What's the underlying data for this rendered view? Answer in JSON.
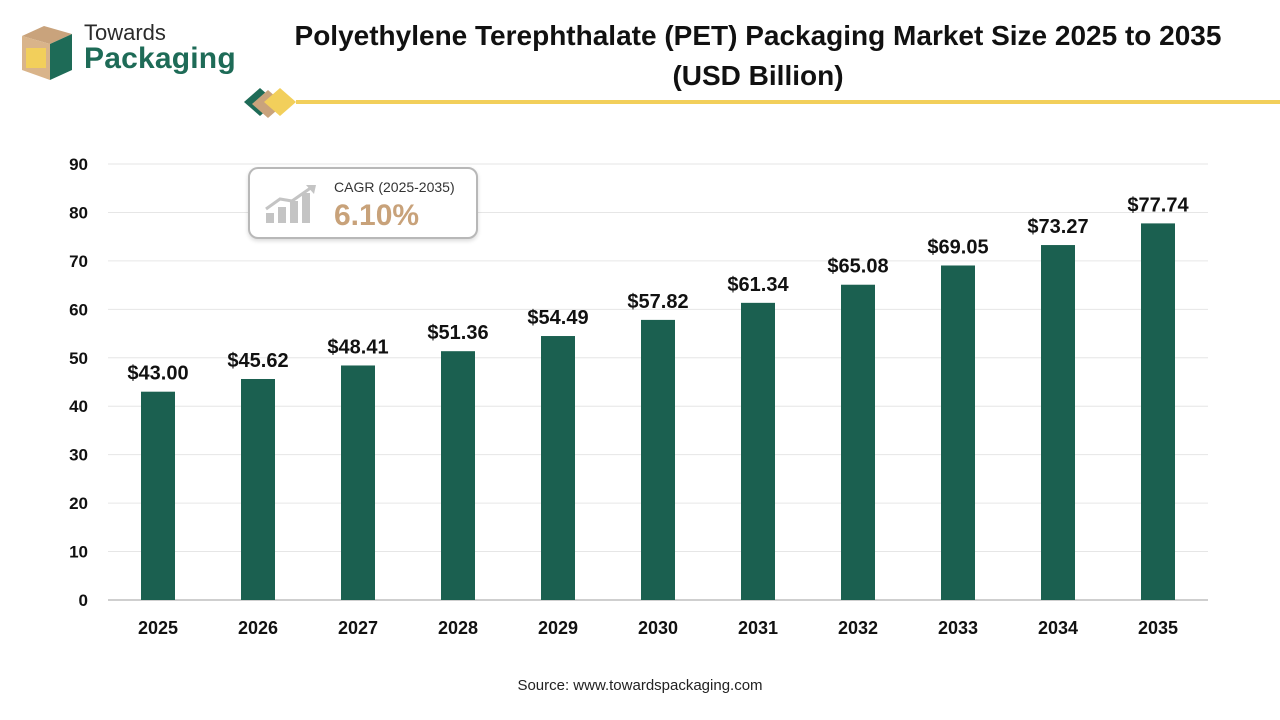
{
  "logo": {
    "line1": "Towards",
    "line2": "Packaging"
  },
  "title": {
    "line1": "Polyethylene Terephthalate (PET) Packaging Market Size 2025 to 2035",
    "line2": "(USD Billion)"
  },
  "cagr": {
    "label": "CAGR (2025-2035)",
    "value": "6.10%"
  },
  "source": "Source: www.towardspackaging.com",
  "colors": {
    "bar": "#1b6050",
    "brand_green": "#1e6b57",
    "gold": "#f2cf5b",
    "cagr_text": "#c8a27a"
  },
  "chart_data": {
    "type": "bar",
    "title": "Polyethylene Terephthalate (PET) Packaging Market Size 2025 to 2035 (USD Billion)",
    "categories": [
      "2025",
      "2026",
      "2027",
      "2028",
      "2029",
      "2030",
      "2031",
      "2032",
      "2033",
      "2034",
      "2035"
    ],
    "values": [
      43.0,
      45.62,
      48.41,
      51.36,
      54.49,
      57.82,
      61.34,
      65.08,
      69.05,
      73.27,
      77.74
    ],
    "data_labels": [
      "$43.00",
      "$45.62",
      "$48.41",
      "$51.36",
      "$54.49",
      "$57.82",
      "$61.34",
      "$65.08",
      "$69.05",
      "$73.27",
      "$77.74"
    ],
    "yticks": [
      "0",
      "10",
      "20",
      "30",
      "40",
      "50",
      "60",
      "70",
      "80",
      "90"
    ],
    "ylim": [
      0,
      90
    ],
    "xlabel": "",
    "ylabel": "",
    "grid": true,
    "legend": "none"
  }
}
